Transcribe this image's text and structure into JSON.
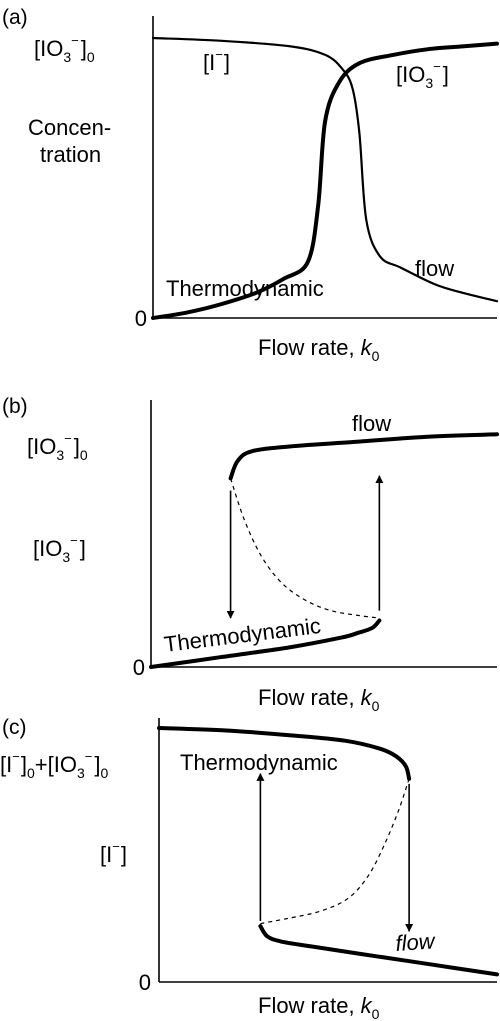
{
  "chart_data": [
    {
      "type": "line",
      "panel_label": "(a)",
      "xlabel": "Flow rate,",
      "xlabel_var": "k",
      "xlabel_sub": "0",
      "ylabel_lines": [
        "Concen-",
        "tration"
      ],
      "ytick_zero": "0",
      "ytick_top": {
        "main": "[IO",
        "sub": "3",
        "sup": "−",
        "close": "]",
        "sub0": "0"
      },
      "series_labels": {
        "iodide": {
          "main": "[I",
          "sup": "−",
          "close": "]"
        },
        "iodate": {
          "main": "[IO",
          "sub": "3",
          "sup": "−",
          "close": "]"
        }
      },
      "annotations": [
        "Thermodynamic",
        "flow"
      ],
      "xlim": [
        0,
        1
      ],
      "ylim": [
        0,
        1
      ],
      "series": [
        {
          "key": "iodide",
          "x": [
            0.0,
            0.2,
            0.4,
            0.5,
            0.55,
            0.58,
            0.6,
            0.62,
            0.66,
            0.72,
            0.82,
            0.9,
            1.0
          ],
          "y": [
            1.0,
            0.99,
            0.97,
            0.94,
            0.89,
            0.82,
            0.66,
            0.35,
            0.22,
            0.18,
            0.12,
            0.09,
            0.06
          ]
        },
        {
          "key": "iodate",
          "x": [
            0.0,
            0.1,
            0.2,
            0.3,
            0.38,
            0.45,
            0.48,
            0.5,
            0.54,
            0.6,
            0.7,
            0.8,
            0.9,
            1.0
          ],
          "y": [
            0.0,
            0.02,
            0.05,
            0.09,
            0.14,
            0.2,
            0.4,
            0.7,
            0.84,
            0.91,
            0.94,
            0.96,
            0.97,
            0.98
          ]
        }
      ]
    },
    {
      "type": "line",
      "panel_label": "(b)",
      "xlabel": "Flow rate,",
      "xlabel_var": "k",
      "xlabel_sub": "0",
      "ytick_zero": "0",
      "ytick_top": {
        "main": "[IO",
        "sub": "3",
        "sup": "−",
        "close": "]",
        "sub0": "0"
      },
      "ylabel": {
        "main": "[IO",
        "sub": "3",
        "sup": "−",
        "close": "]"
      },
      "annotations": [
        "Thermodynamic",
        "flow"
      ],
      "xlim": [
        0,
        1
      ],
      "ylim": [
        0,
        1
      ],
      "series": [
        {
          "key": "thermodynamic-branch",
          "x": [
            0.0,
            0.2,
            0.4,
            0.55,
            0.6,
            0.64,
            0.66
          ],
          "y": [
            0.0,
            0.04,
            0.08,
            0.12,
            0.14,
            0.16,
            0.19
          ]
        },
        {
          "key": "flow-branch",
          "x": [
            0.23,
            0.25,
            0.29,
            0.4,
            0.6,
            0.8,
            1.0
          ],
          "y": [
            0.77,
            0.84,
            0.88,
            0.9,
            0.92,
            0.94,
            0.95
          ]
        },
        {
          "key": "unstable-branch",
          "dashed": true,
          "x": [
            0.23,
            0.27,
            0.32,
            0.38,
            0.45,
            0.52,
            0.6,
            0.66
          ],
          "y": [
            0.77,
            0.6,
            0.45,
            0.34,
            0.27,
            0.23,
            0.21,
            0.2
          ]
        }
      ],
      "transitions": [
        {
          "x": 0.23,
          "from": 0.72,
          "to": 0.2,
          "direction": "down"
        },
        {
          "x": 0.66,
          "from": 0.23,
          "to": 0.78,
          "direction": "up"
        }
      ]
    },
    {
      "type": "line",
      "panel_label": "(c)",
      "xlabel": "Flow rate,",
      "xlabel_var": "k",
      "xlabel_sub": "0",
      "ytick_zero": "0",
      "ytick_top": {
        "a_main": "[I",
        "a_sup": "−",
        "a_close": "]",
        "a_sub": "0",
        "plus": "+",
        "b_main": "[IO",
        "b_sub": "3",
        "b_sup": "−",
        "b_close": "]",
        "b_sub0": "0"
      },
      "ylabel": {
        "main": "[I",
        "sup": "−",
        "close": "]"
      },
      "annotations": [
        "Thermodynamic",
        "flow"
      ],
      "xlim": [
        0,
        1
      ],
      "ylim": [
        0,
        1
      ],
      "series": [
        {
          "key": "thermodynamic-branch",
          "x": [
            0.0,
            0.2,
            0.4,
            0.55,
            0.65,
            0.7,
            0.73,
            0.74
          ],
          "y": [
            1.0,
            0.99,
            0.97,
            0.95,
            0.92,
            0.89,
            0.85,
            0.8
          ]
        },
        {
          "key": "flow-branch",
          "x": [
            0.3,
            0.32,
            0.36,
            0.45,
            0.6,
            0.8,
            1.0
          ],
          "y": [
            0.22,
            0.18,
            0.16,
            0.14,
            0.11,
            0.07,
            0.03
          ]
        },
        {
          "key": "unstable-branch",
          "dashed": true,
          "x": [
            0.3,
            0.38,
            0.48,
            0.56,
            0.62,
            0.67,
            0.71,
            0.74
          ],
          "y": [
            0.23,
            0.25,
            0.28,
            0.33,
            0.42,
            0.55,
            0.68,
            0.8
          ]
        }
      ],
      "transitions": [
        {
          "x": 0.3,
          "from": 0.24,
          "to": 0.82,
          "direction": "up"
        },
        {
          "x": 0.74,
          "from": 0.78,
          "to": 0.2,
          "direction": "down"
        }
      ]
    }
  ]
}
